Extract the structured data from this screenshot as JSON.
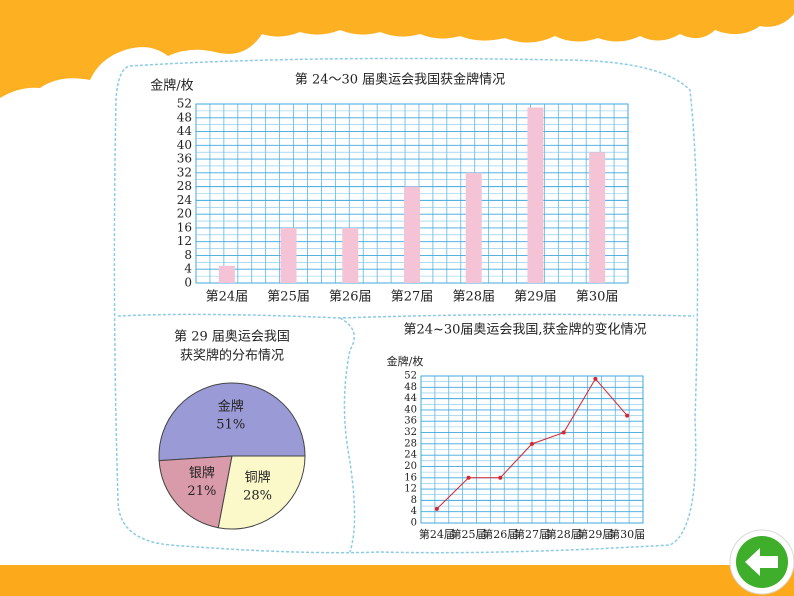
{
  "chart_data": [
    {
      "type": "bar",
      "title": "第 24～30 届奥运会我国获金牌情况",
      "y_label": "金牌/枚",
      "categories": [
        "第24届",
        "第25届",
        "第26届",
        "第27届",
        "第28届",
        "第29届",
        "第30届"
      ],
      "values": [
        5,
        16,
        16,
        28,
        32,
        51,
        38
      ],
      "color": "#f4c4d6",
      "ylim": [
        0,
        52
      ],
      "yticks": [
        0,
        4,
        8,
        12,
        16,
        20,
        24,
        28,
        32,
        36,
        40,
        44,
        48,
        52
      ],
      "grid": true
    },
    {
      "type": "pie",
      "title": [
        "第 29 届奥运会我国",
        "获奖牌的分布情况"
      ],
      "categories": [
        "金牌",
        "银牌",
        "铜牌"
      ],
      "values": [
        51,
        21,
        28
      ],
      "value_labels": [
        "51%",
        "21%",
        "28%"
      ],
      "colors": [
        "#9a9ad6",
        "#d99aa9",
        "#fbf9c9"
      ]
    },
    {
      "type": "line",
      "title": [
        "第24~30届奥运会我国",
        "获金牌的变化情况"
      ],
      "y_label": "金牌/枚",
      "categories": [
        "第24届",
        "第25届",
        "第26届",
        "第27届",
        "第28届",
        "第29届",
        "第30届"
      ],
      "values": [
        5,
        16,
        16,
        28,
        32,
        51,
        38
      ],
      "color": "#d8262e",
      "ylim": [
        0,
        52
      ],
      "yticks": [
        0,
        4,
        8,
        12,
        16,
        20,
        24,
        28,
        32,
        36,
        40,
        44,
        48,
        52
      ],
      "grid": true
    }
  ]
}
